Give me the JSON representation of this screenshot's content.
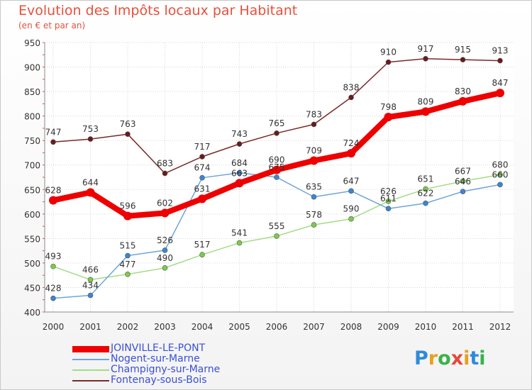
{
  "title": "Evolution des Impôts locaux par Habitant",
  "subtitle": "(en € et par an)",
  "logo": {
    "letters": [
      "P",
      "r",
      "o",
      "x",
      "i",
      "t",
      "i"
    ],
    "colors": [
      "#2f8ad8",
      "#e8a020",
      "#3ab24a",
      "#e24a3a",
      "#e8a020",
      "#2f8ad8",
      "#3ab24a"
    ]
  },
  "chart_data": {
    "type": "line",
    "title": "Evolution des Impôts locaux par Habitant",
    "subtitle": "(en € et par an)",
    "x": [
      "2000",
      "2001",
      "2002",
      "2003",
      "2004",
      "2005",
      "2006",
      "2007",
      "2008",
      "2009",
      "2010",
      "2011",
      "2012"
    ],
    "ylim": [
      400,
      950
    ],
    "yticks": [
      400,
      450,
      500,
      550,
      600,
      650,
      700,
      750,
      800,
      850,
      900,
      950
    ],
    "grid": true,
    "legend_position": "bottom-left",
    "series": [
      {
        "name": "JOINVILLE-LE-PONT",
        "color": "#ee0000",
        "marker": "#ee0000",
        "width": 8,
        "values": [
          628,
          644,
          596,
          602,
          631,
          663,
          690,
          709,
          724,
          798,
          809,
          830,
          847
        ],
        "labels": [
          "628",
          "644",
          "596",
          "602",
          "631",
          "663",
          "690",
          "709",
          "724",
          "798",
          "809",
          "830",
          "847"
        ]
      },
      {
        "name": "Nogent-sur-Marne",
        "color": "#6ea6d8",
        "marker": "#3a86d0",
        "width": 1.5,
        "values": [
          428,
          434,
          515,
          526,
          674,
          684,
          675,
          635,
          647,
          611,
          622,
          646,
          660
        ],
        "labels": [
          "428",
          "434",
          "515",
          "526",
          "674",
          "684",
          "675",
          "635",
          "647",
          "611",
          "622",
          "646",
          "660"
        ]
      },
      {
        "name": "Champigny-sur-Marne",
        "color": "#a4dc84",
        "marker": "#7ccc4a",
        "width": 1.5,
        "values": [
          493,
          466,
          477,
          490,
          517,
          541,
          555,
          578,
          590,
          626,
          651,
          667,
          680
        ],
        "labels": [
          "493",
          "466",
          "477",
          "490",
          "517",
          "541",
          "555",
          "578",
          "590",
          "626",
          "651",
          "667",
          "680"
        ]
      },
      {
        "name": "Fontenay-sous-Bois",
        "color": "#7a2a2a",
        "marker": "#6a1a1a",
        "width": 1.5,
        "values": [
          747,
          753,
          763,
          683,
          717,
          743,
          765,
          783,
          838,
          910,
          917,
          915,
          913
        ],
        "labels": [
          "747",
          "753",
          "763",
          "683",
          "717",
          "743",
          "765",
          "783",
          "838",
          "910",
          "917",
          "915",
          "913"
        ]
      }
    ]
  }
}
